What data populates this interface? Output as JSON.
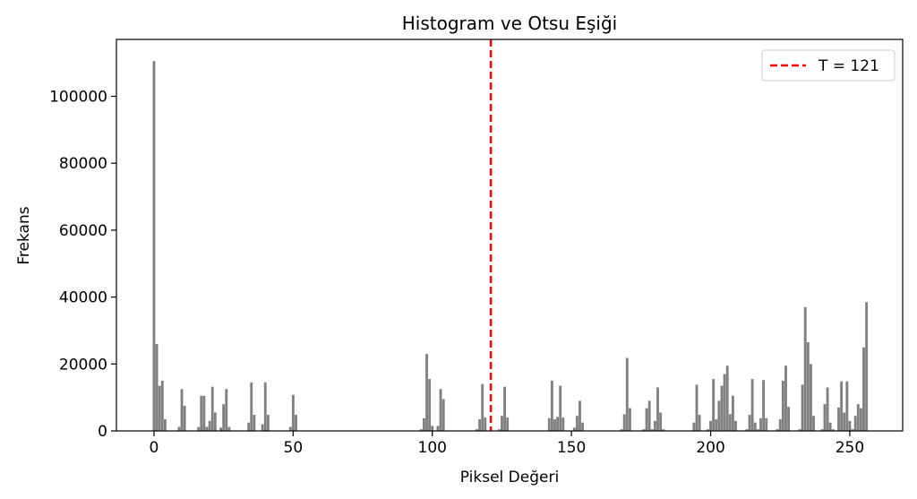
{
  "chart_data": {
    "type": "bar",
    "title": "Histogram ve Otsu Eşiği",
    "xlabel": "Piksel Değeri",
    "ylabel": "Frekans",
    "xlim": [
      -13.5,
      269
    ],
    "ylim": [
      0,
      117000
    ],
    "xticks": [
      0,
      50,
      100,
      150,
      200,
      250
    ],
    "yticks": [
      0,
      20000,
      40000,
      60000,
      80000,
      100000
    ],
    "bar_color": "#808080",
    "threshold": {
      "value": 121,
      "label": "T = 121",
      "color": "#ff0000",
      "style": "dashed"
    },
    "legend": {
      "position": "top-right",
      "entries": [
        "T = 121"
      ]
    },
    "bins": [
      [
        0,
        110500
      ],
      [
        1,
        26000
      ],
      [
        2,
        13500
      ],
      [
        3,
        15000
      ],
      [
        4,
        3500
      ],
      [
        9,
        1200
      ],
      [
        10,
        12500
      ],
      [
        11,
        7500
      ],
      [
        16,
        1200
      ],
      [
        17,
        10500
      ],
      [
        18,
        10500
      ],
      [
        19,
        1200
      ],
      [
        20,
        3000
      ],
      [
        21,
        13200
      ],
      [
        22,
        5500
      ],
      [
        24,
        1000
      ],
      [
        25,
        8000
      ],
      [
        26,
        12500
      ],
      [
        27,
        1200
      ],
      [
        34,
        2500
      ],
      [
        35,
        14500
      ],
      [
        36,
        4800
      ],
      [
        39,
        2000
      ],
      [
        40,
        14500
      ],
      [
        41,
        4800
      ],
      [
        49,
        1200
      ],
      [
        50,
        10800
      ],
      [
        51,
        4800
      ],
      [
        96,
        500
      ],
      [
        97,
        3800
      ],
      [
        98,
        23000
      ],
      [
        99,
        15500
      ],
      [
        100,
        1500
      ],
      [
        102,
        1500
      ],
      [
        103,
        12500
      ],
      [
        104,
        9500
      ],
      [
        116,
        500
      ],
      [
        117,
        3500
      ],
      [
        118,
        14000
      ],
      [
        119,
        4000
      ],
      [
        124,
        500
      ],
      [
        125,
        4500
      ],
      [
        126,
        13200
      ],
      [
        127,
        4000
      ],
      [
        142,
        3800
      ],
      [
        143,
        15000
      ],
      [
        144,
        3500
      ],
      [
        145,
        4200
      ],
      [
        146,
        13500
      ],
      [
        147,
        4000
      ],
      [
        151,
        1000
      ],
      [
        152,
        4500
      ],
      [
        153,
        9000
      ],
      [
        154,
        2500
      ],
      [
        168,
        500
      ],
      [
        169,
        5000
      ],
      [
        170,
        21800
      ],
      [
        171,
        6800
      ],
      [
        176,
        500
      ],
      [
        177,
        6800
      ],
      [
        178,
        9000
      ],
      [
        179,
        500
      ],
      [
        180,
        3000
      ],
      [
        181,
        13000
      ],
      [
        182,
        5500
      ],
      [
        183,
        500
      ],
      [
        194,
        2500
      ],
      [
        195,
        13800
      ],
      [
        196,
        4800
      ],
      [
        199,
        500
      ],
      [
        200,
        3000
      ],
      [
        201,
        15500
      ],
      [
        202,
        3500
      ],
      [
        203,
        9000
      ],
      [
        204,
        13500
      ],
      [
        205,
        17000
      ],
      [
        206,
        19500
      ],
      [
        207,
        5000
      ],
      [
        208,
        10500
      ],
      [
        209,
        3000
      ],
      [
        213,
        500
      ],
      [
        214,
        4800
      ],
      [
        215,
        15500
      ],
      [
        216,
        2500
      ],
      [
        217,
        500
      ],
      [
        218,
        3800
      ],
      [
        219,
        15200
      ],
      [
        220,
        3800
      ],
      [
        224,
        500
      ],
      [
        225,
        3500
      ],
      [
        226,
        15000
      ],
      [
        227,
        19500
      ],
      [
        228,
        7200
      ],
      [
        232,
        500
      ],
      [
        233,
        13800
      ],
      [
        234,
        37000
      ],
      [
        235,
        26500
      ],
      [
        236,
        20000
      ],
      [
        237,
        4500
      ],
      [
        240,
        500
      ],
      [
        241,
        8000
      ],
      [
        242,
        13000
      ],
      [
        243,
        2500
      ],
      [
        244,
        500
      ],
      [
        246,
        7000
      ],
      [
        247,
        14800
      ],
      [
        248,
        5500
      ],
      [
        249,
        14800
      ],
      [
        250,
        3000
      ],
      [
        251,
        500
      ],
      [
        252,
        4500
      ],
      [
        253,
        8000
      ],
      [
        254,
        6800
      ],
      [
        255,
        25000
      ],
      [
        256,
        38500
      ]
    ]
  }
}
